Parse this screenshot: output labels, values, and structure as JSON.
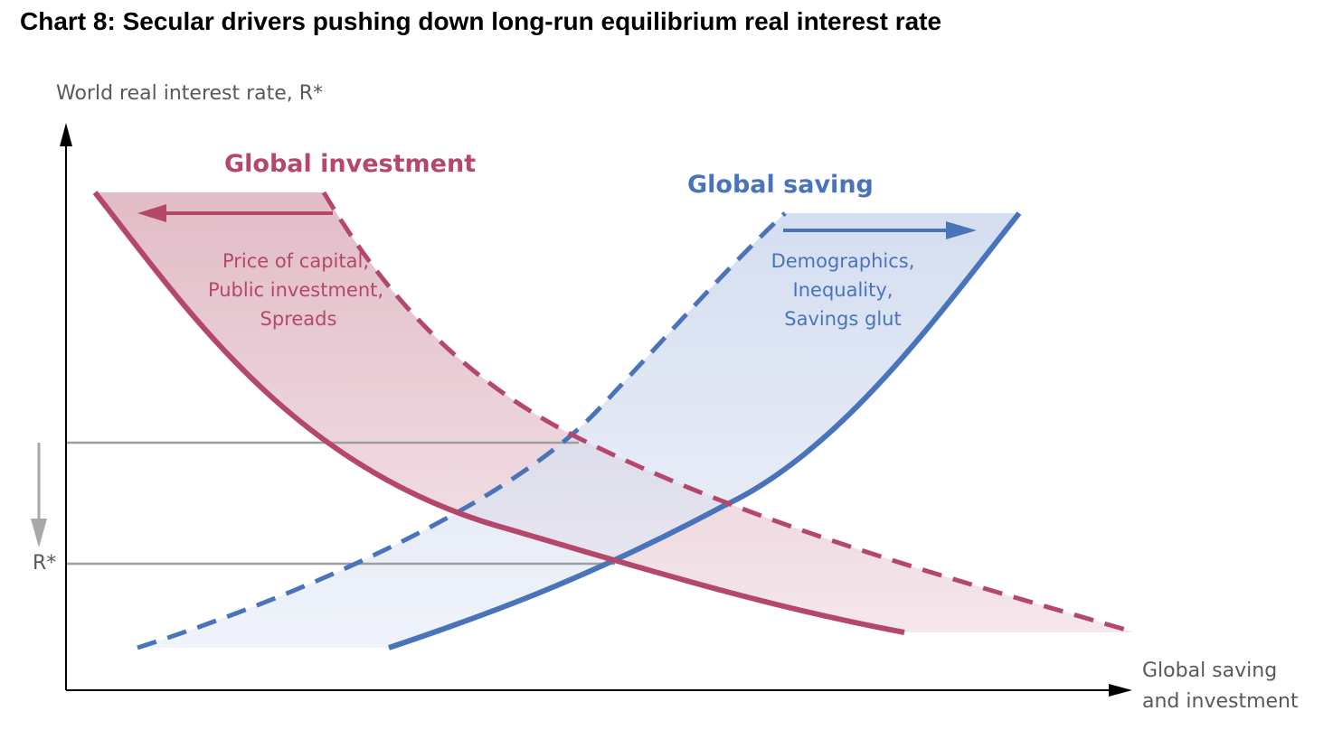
{
  "title": "Chart 8:  Secular drivers pushing down long-run equilibrium real interest rate",
  "y_axis_label": "World real interest rate, R*",
  "x_axis_label_lines": [
    "Global saving",
    "and investment"
  ],
  "rstar_label": "R*",
  "investment": {
    "heading": "Global investment",
    "drivers": [
      "Price of capital,",
      "Public investment,",
      "Spreads"
    ],
    "shift_direction": "left",
    "color": "#b5486a"
  },
  "saving": {
    "heading": "Global saving",
    "drivers": [
      "Demographics,",
      "Inequality,",
      "Savings glut"
    ],
    "shift_direction": "right",
    "color": "#4a74b9"
  },
  "colors": {
    "axis": "#000000",
    "reference_line": "#9e9e9e",
    "down_arrow": "#a8a8a8",
    "investment_fill": "#e2c0cb",
    "saving_fill": "#cdd8ec"
  }
}
